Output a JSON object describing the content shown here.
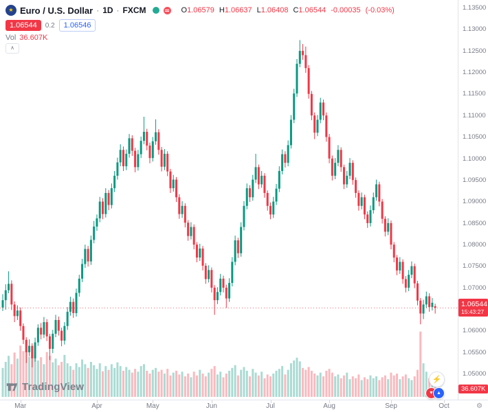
{
  "header": {
    "symbol": "Euro / U.S. Dollar",
    "separator": "·",
    "interval": "1D",
    "exchange": "FXCM",
    "ohlc": {
      "o_label": "O",
      "o_value": "1.06579",
      "h_label": "H",
      "h_value": "1.06637",
      "l_label": "L",
      "l_value": "1.06408",
      "c_label": "C",
      "c_value": "1.06544",
      "change": "-0.00035",
      "change_pct": "(-0.03%)"
    },
    "sell_button": "1.06544",
    "spread": "0.2",
    "buy_button": "1.06546",
    "volume_label": "Vol",
    "volume_value": "36.607K",
    "collapse_caret": "∧"
  },
  "price_axis": {
    "labels": [
      "1.13500",
      "1.13000",
      "1.12500",
      "1.12000",
      "1.11500",
      "1.11000",
      "1.10500",
      "1.10000",
      "1.09500",
      "1.09000",
      "1.08500",
      "1.08000",
      "1.07500",
      "1.07000",
      "1.06500",
      "1.06000",
      "1.05500",
      "1.05000"
    ],
    "current_price": "1.06544",
    "countdown": "15:43:27",
    "volume_badge": "36.607K"
  },
  "time_axis": {
    "months": [
      {
        "label": "Mar",
        "index": 6
      },
      {
        "label": "Apr",
        "index": 32
      },
      {
        "label": "May",
        "index": 51
      },
      {
        "label": "Jun",
        "index": 71
      },
      {
        "label": "Jul",
        "index": 91
      },
      {
        "label": "Aug",
        "index": 111
      },
      {
        "label": "Sep",
        "index": 132
      },
      {
        "label": "Oct",
        "index": 150
      }
    ]
  },
  "footer": {
    "logo_text": "TradingView"
  },
  "colors": {
    "up": "#089981",
    "down": "#f23645",
    "up_volume": "rgba(8,153,129,0.35)",
    "down_volume": "rgba(242,54,69,0.35)",
    "accent_blue": "#2962ff",
    "badge_red": "#f23645",
    "text_dark": "#131722",
    "text_gray": "#787b86",
    "axis_border": "#e0e3eb"
  },
  "chart_data": {
    "type": "candlestick",
    "title": "Euro / U.S. Dollar",
    "interval": "1D",
    "exchange": "FXCM",
    "y_axis": {
      "min": 1.05,
      "max": 1.135,
      "tick_step": 0.005
    },
    "current_price": 1.06544,
    "candles": [
      [
        1.0655,
        1.0686,
        1.0647,
        1.0672
      ],
      [
        1.0672,
        1.0709,
        1.065,
        1.0695
      ],
      [
        1.0695,
        1.0739,
        1.0688,
        1.071
      ],
      [
        1.071,
        1.0718,
        1.0649,
        1.0662
      ],
      [
        1.0662,
        1.0669,
        1.0621,
        1.0635
      ],
      [
        1.0635,
        1.066,
        1.0626,
        1.0648
      ],
      [
        1.0648,
        1.0655,
        1.0601,
        1.0612
      ],
      [
        1.0612,
        1.0618,
        1.057,
        1.058
      ],
      [
        1.058,
        1.0586,
        1.0526,
        1.0551
      ],
      [
        1.0551,
        1.0581,
        1.0542,
        1.0566
      ],
      [
        1.0566,
        1.0572,
        1.0516,
        1.0537
      ],
      [
        1.0537,
        1.0585,
        1.0529,
        1.0574
      ],
      [
        1.0574,
        1.0616,
        1.0566,
        1.0608
      ],
      [
        1.0608,
        1.0619,
        1.0581,
        1.0592
      ],
      [
        1.0592,
        1.0633,
        1.0584,
        1.0621
      ],
      [
        1.0621,
        1.0628,
        1.0577,
        1.0588
      ],
      [
        1.0588,
        1.0594,
        1.0533,
        1.0559
      ],
      [
        1.0559,
        1.0603,
        1.0549,
        1.0594
      ],
      [
        1.0594,
        1.0638,
        1.0586,
        1.0626
      ],
      [
        1.0626,
        1.0634,
        1.059,
        1.0601
      ],
      [
        1.0601,
        1.0608,
        1.0565,
        1.0578
      ],
      [
        1.0578,
        1.0621,
        1.0569,
        1.0612
      ],
      [
        1.0612,
        1.0656,
        1.0603,
        1.0645
      ],
      [
        1.0645,
        1.068,
        1.0636,
        1.0668
      ],
      [
        1.0668,
        1.0676,
        1.0631,
        1.0642
      ],
      [
        1.0642,
        1.0699,
        1.0634,
        1.0689
      ],
      [
        1.0689,
        1.0731,
        1.068,
        1.0722
      ],
      [
        1.0722,
        1.0768,
        1.0714,
        1.0756
      ],
      [
        1.0756,
        1.0801,
        1.0747,
        1.0791
      ],
      [
        1.0791,
        1.0798,
        1.075,
        1.0762
      ],
      [
        1.0762,
        1.0822,
        1.0754,
        1.0812
      ],
      [
        1.0812,
        1.0856,
        1.0804,
        1.0843
      ],
      [
        1.0843,
        1.0871,
        1.0833,
        1.0862
      ],
      [
        1.0862,
        1.0912,
        1.0853,
        1.0901
      ],
      [
        1.0901,
        1.0909,
        1.086,
        1.0872
      ],
      [
        1.0872,
        1.0932,
        1.0864,
        1.0921
      ],
      [
        1.0921,
        1.0928,
        1.0881,
        1.0893
      ],
      [
        1.0893,
        1.0943,
        1.0885,
        1.0932
      ],
      [
        1.0932,
        1.0972,
        1.0923,
        1.0961
      ],
      [
        1.0961,
        1.1003,
        1.0952,
        1.0992
      ],
      [
        1.0992,
        1.1034,
        1.0983,
        1.1021
      ],
      [
        1.1021,
        1.1029,
        1.0972,
        1.0983
      ],
      [
        1.0983,
        1.1022,
        1.0974,
        1.1012
      ],
      [
        1.1012,
        1.1058,
        1.1003,
        1.1048
      ],
      [
        1.1048,
        1.1055,
        1.1007,
        1.1019
      ],
      [
        1.1019,
        1.1026,
        1.0969,
        1.0981
      ],
      [
        1.0981,
        1.1021,
        1.0973,
        1.1011
      ],
      [
        1.1011,
        1.1052,
        1.1002,
        1.1042
      ],
      [
        1.1042,
        1.1098,
        1.1034,
        1.1063
      ],
      [
        1.1063,
        1.107,
        1.102,
        1.1031
      ],
      [
        1.1031,
        1.1038,
        1.099,
        1.1002
      ],
      [
        1.1002,
        1.1051,
        1.0994,
        1.1041
      ],
      [
        1.1041,
        1.1092,
        1.1033,
        1.1062
      ],
      [
        1.1062,
        1.1069,
        1.101,
        1.1021
      ],
      [
        1.1021,
        1.1028,
        1.0971,
        1.0982
      ],
      [
        1.0982,
        1.1023,
        1.0974,
        1.1012
      ],
      [
        1.1012,
        1.1018,
        1.096,
        1.0971
      ],
      [
        1.0971,
        1.0977,
        1.0921,
        1.0932
      ],
      [
        1.0932,
        1.0963,
        1.0924,
        1.0952
      ],
      [
        1.0952,
        1.0958,
        1.09,
        1.0911
      ],
      [
        1.0911,
        1.0918,
        1.0861,
        1.0872
      ],
      [
        1.0872,
        1.0902,
        1.0863,
        1.0891
      ],
      [
        1.0891,
        1.0897,
        1.0841,
        1.0852
      ],
      [
        1.0852,
        1.0858,
        1.081,
        1.0821
      ],
      [
        1.0821,
        1.0853,
        1.0813,
        1.0842
      ],
      [
        1.0842,
        1.0848,
        1.079,
        1.0801
      ],
      [
        1.0801,
        1.0807,
        1.076,
        1.0771
      ],
      [
        1.0771,
        1.0803,
        1.0763,
        1.0792
      ],
      [
        1.0792,
        1.0798,
        1.0741,
        1.0752
      ],
      [
        1.0752,
        1.0758,
        1.071,
        1.0721
      ],
      [
        1.0721,
        1.0753,
        1.0713,
        1.0742
      ],
      [
        1.0742,
        1.0748,
        1.069,
        1.0701
      ],
      [
        1.0701,
        1.0707,
        1.0638,
        1.0672
      ],
      [
        1.0672,
        1.0702,
        1.0663,
        1.0691
      ],
      [
        1.0691,
        1.0733,
        1.0683,
        1.0722
      ],
      [
        1.0722,
        1.0729,
        1.069,
        1.0701
      ],
      [
        1.0701,
        1.0708,
        1.0654,
        1.0676
      ],
      [
        1.0676,
        1.0723,
        1.0668,
        1.0712
      ],
      [
        1.0712,
        1.0772,
        1.0704,
        1.0761
      ],
      [
        1.0761,
        1.0822,
        1.0753,
        1.0811
      ],
      [
        1.0811,
        1.0817,
        1.077,
        1.0781
      ],
      [
        1.0781,
        1.0853,
        1.0773,
        1.0842
      ],
      [
        1.0842,
        1.0902,
        1.0834,
        1.0891
      ],
      [
        1.0891,
        1.0943,
        1.0883,
        1.0932
      ],
      [
        1.0932,
        1.0939,
        1.09,
        1.0911
      ],
      [
        1.0911,
        1.0963,
        1.0903,
        1.0952
      ],
      [
        1.0952,
        1.1012,
        1.0944,
        1.0981
      ],
      [
        1.0981,
        1.0987,
        1.093,
        1.0941
      ],
      [
        1.0941,
        1.0972,
        1.0933,
        1.0961
      ],
      [
        1.0961,
        1.0967,
        1.091,
        1.0921
      ],
      [
        1.0921,
        1.0927,
        1.088,
        1.0891
      ],
      [
        1.0891,
        1.0899,
        1.086,
        1.0871
      ],
      [
        1.0871,
        1.0912,
        1.0863,
        1.0901
      ],
      [
        1.0901,
        1.0942,
        1.0893,
        1.0931
      ],
      [
        1.0931,
        1.0983,
        1.0923,
        1.0972
      ],
      [
        1.0972,
        1.1022,
        1.0964,
        1.1011
      ],
      [
        1.1011,
        1.1018,
        1.098,
        1.0991
      ],
      [
        1.0991,
        1.1043,
        1.0983,
        1.1032
      ],
      [
        1.1032,
        1.1102,
        1.1024,
        1.1091
      ],
      [
        1.1091,
        1.1163,
        1.1083,
        1.1152
      ],
      [
        1.1152,
        1.1232,
        1.1144,
        1.1221
      ],
      [
        1.1221,
        1.1276,
        1.1213,
        1.1251
      ],
      [
        1.1251,
        1.1267,
        1.123,
        1.1241
      ],
      [
        1.1241,
        1.1261,
        1.12,
        1.1211
      ],
      [
        1.1211,
        1.1218,
        1.114,
        1.1151
      ],
      [
        1.1151,
        1.1158,
        1.109,
        1.1101
      ],
      [
        1.1101,
        1.1108,
        1.1046,
        1.1061
      ],
      [
        1.1061,
        1.1102,
        1.1053,
        1.1091
      ],
      [
        1.1091,
        1.1142,
        1.1083,
        1.1131
      ],
      [
        1.1131,
        1.1138,
        1.109,
        1.1101
      ],
      [
        1.1101,
        1.1108,
        1.104,
        1.1051
      ],
      [
        1.1051,
        1.1058,
        1.099,
        1.1001
      ],
      [
        1.1001,
        1.1008,
        1.095,
        1.0961
      ],
      [
        1.0961,
        1.1002,
        1.0953,
        1.0991
      ],
      [
        1.0991,
        1.1032,
        1.0983,
        1.1021
      ],
      [
        1.1021,
        1.1027,
        1.097,
        1.0981
      ],
      [
        1.0981,
        1.0987,
        1.093,
        1.0941
      ],
      [
        1.0941,
        1.0972,
        1.0933,
        1.0961
      ],
      [
        1.0961,
        1.1002,
        1.0953,
        1.0991
      ],
      [
        1.0991,
        1.0997,
        1.094,
        1.0951
      ],
      [
        1.0951,
        1.0957,
        1.091,
        1.0921
      ],
      [
        1.0921,
        1.0927,
        1.088,
        1.0891
      ],
      [
        1.0891,
        1.0922,
        1.0883,
        1.0911
      ],
      [
        1.0911,
        1.0917,
        1.086,
        1.0871
      ],
      [
        1.0871,
        1.0878,
        1.084,
        1.0851
      ],
      [
        1.0851,
        1.0892,
        1.0843,
        1.0881
      ],
      [
        1.0881,
        1.0922,
        1.0873,
        1.0911
      ],
      [
        1.0911,
        1.0952,
        1.0903,
        1.0941
      ],
      [
        1.0941,
        1.0947,
        1.089,
        1.0901
      ],
      [
        1.0901,
        1.0907,
        1.085,
        1.0861
      ],
      [
        1.0861,
        1.0867,
        1.082,
        1.0831
      ],
      [
        1.0831,
        1.0862,
        1.0823,
        1.0851
      ],
      [
        1.0851,
        1.0857,
        1.079,
        1.0801
      ],
      [
        1.0801,
        1.0807,
        1.076,
        1.0771
      ],
      [
        1.0771,
        1.0777,
        1.073,
        1.0741
      ],
      [
        1.0741,
        1.0772,
        1.0733,
        1.0761
      ],
      [
        1.0761,
        1.0767,
        1.071,
        1.0721
      ],
      [
        1.0721,
        1.0728,
        1.069,
        1.0701
      ],
      [
        1.0701,
        1.0742,
        1.0693,
        1.0731
      ],
      [
        1.0731,
        1.0762,
        1.0723,
        1.0751
      ],
      [
        1.0751,
        1.0757,
        1.07,
        1.0711
      ],
      [
        1.0711,
        1.0717,
        1.066,
        1.0671
      ],
      [
        1.0671,
        1.0677,
        1.0616,
        1.0641
      ],
      [
        1.0641,
        1.0673,
        1.0628,
        1.0662
      ],
      [
        1.0662,
        1.0692,
        1.0654,
        1.0681
      ],
      [
        1.0681,
        1.0688,
        1.0645,
        1.0656
      ],
      [
        1.0656,
        1.0677,
        1.0648,
        1.0666
      ],
      [
        1.06579,
        1.06637,
        1.06408,
        1.06544
      ]
    ],
    "volume_k": [
      62,
      75,
      88,
      70,
      95,
      82,
      110,
      98,
      120,
      86,
      105,
      92,
      78,
      85,
      70,
      96,
      88,
      74,
      82,
      68,
      75,
      90,
      72,
      66,
      58,
      72,
      64,
      80,
      70,
      62,
      75,
      68,
      60,
      72,
      55,
      66,
      58,
      70,
      62,
      74,
      66,
      56,
      64,
      58,
      52,
      60,
      54,
      66,
      70,
      56,
      50,
      58,
      62,
      54,
      58,
      50,
      60,
      46,
      52,
      56,
      48,
      54,
      44,
      50,
      42,
      54,
      46,
      58,
      50,
      44,
      52,
      60,
      66,
      48,
      54,
      42,
      50,
      56,
      62,
      68,
      46,
      58,
      64,
      56,
      44,
      60,
      52,
      46,
      54,
      40,
      48,
      44,
      50,
      56,
      60,
      66,
      48,
      58,
      72,
      78,
      84,
      76,
      62,
      58,
      64,
      56,
      50,
      46,
      52,
      44,
      56,
      60,
      52,
      44,
      48,
      40,
      46,
      52,
      38,
      44,
      40,
      48,
      36,
      42,
      38,
      46,
      40,
      44,
      36,
      42,
      46,
      38,
      52,
      46,
      50,
      38,
      44,
      48,
      40,
      36,
      44,
      58,
      140,
      72,
      54,
      40,
      34,
      36.607
    ]
  }
}
